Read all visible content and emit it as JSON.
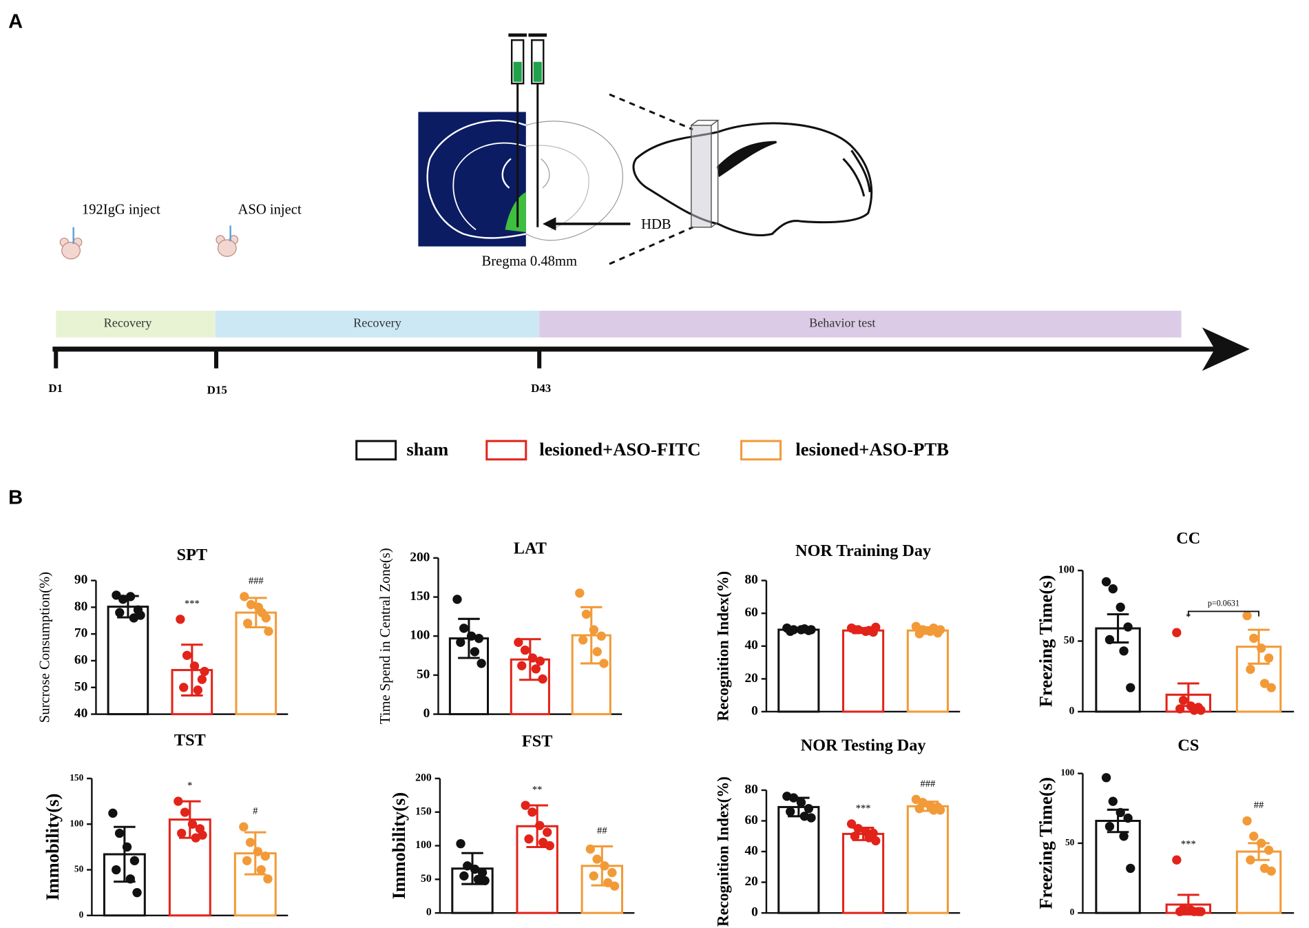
{
  "panel_a": {
    "label": "A",
    "events": [
      "192IgG inject",
      "ASO inject"
    ],
    "section_label": "Bregma 0.48mm",
    "region_label": "HDB",
    "phases": [
      "Recovery",
      "Recovery",
      "Behavior test"
    ],
    "days": [
      "D1",
      "D15",
      "D43"
    ]
  },
  "panel_b": {
    "label": "B"
  },
  "legend": [
    {
      "name": "sham",
      "color": "#111111"
    },
    {
      "name": "lesioned+ASO-FITC",
      "color": "#e2231a"
    },
    {
      "name": "lesioned+ASO-PTB",
      "color": "#f29a38"
    }
  ],
  "chart_data": [
    {
      "type": "bar",
      "title": "SPT",
      "y_label": "Surcrose Consumption(%)",
      "ylim": [
        40,
        90
      ],
      "yticks": [
        40,
        50,
        60,
        70,
        80,
        90
      ],
      "values": [
        80.2,
        56.5,
        78
      ],
      "errors": [
        4,
        9.5,
        5.5
      ],
      "points": [
        [
          84.5,
          83,
          84,
          79,
          78,
          76,
          77
        ],
        [
          75.5,
          62,
          58,
          53,
          50,
          49,
          56
        ],
        [
          84,
          81,
          80,
          76,
          74,
          78,
          71
        ]
      ],
      "annotations": [
        null,
        "***",
        "###"
      ]
    },
    {
      "type": "bar",
      "title": "LAT",
      "y_label": "Time Spend in Central Zone(s)",
      "ylim": [
        0,
        200
      ],
      "yticks": [
        0,
        50,
        100,
        150,
        200
      ],
      "values": [
        97,
        70,
        101
      ],
      "errors": [
        25,
        26,
        36
      ],
      "points": [
        [
          147,
          110,
          100,
          97,
          92,
          80,
          65
        ],
        [
          92,
          82,
          72,
          68,
          62,
          58,
          45
        ],
        [
          155,
          128,
          108,
          100,
          95,
          80,
          65
        ]
      ],
      "annotations": [
        null,
        null,
        null
      ]
    },
    {
      "type": "bar",
      "title": "NOR Training Day",
      "y_label": "Recognition Index(%)",
      "ylim": [
        0,
        80
      ],
      "yticks": [
        0,
        20,
        40,
        60,
        80
      ],
      "values": [
        50,
        49.5,
        49.5
      ],
      "errors": [
        1,
        1.5,
        2
      ],
      "points": [
        [
          51,
          50,
          50,
          49.5,
          49,
          50.5,
          50
        ],
        [
          51,
          50,
          49,
          48.5,
          50,
          49.5,
          51.5
        ],
        [
          52,
          50,
          49,
          48,
          47.5,
          51,
          50
        ]
      ],
      "annotations": [
        null,
        null,
        null
      ]
    },
    {
      "type": "bar",
      "title": "CC",
      "y_label": "Freezing Time(s)",
      "ylim": [
        0,
        100
      ],
      "yticks": [
        0,
        50,
        100
      ],
      "values": [
        59,
        12,
        46
      ],
      "errors": [
        10,
        8,
        12
      ],
      "points": [
        [
          92,
          87,
          74,
          60,
          51,
          43,
          17
        ],
        [
          56,
          8,
          4,
          3,
          2,
          1,
          1
        ],
        [
          68,
          52,
          45,
          38,
          30,
          20,
          17
        ]
      ],
      "annotations": [
        null,
        "*",
        null
      ],
      "bracket_label": "p=0.0631"
    },
    {
      "type": "bar",
      "title": "TST",
      "y_label": "Immobility(s)",
      "ylim": [
        0,
        150
      ],
      "yticks": [
        0,
        50,
        100,
        150
      ],
      "values": [
        67,
        105,
        68
      ],
      "errors": [
        30,
        20,
        23
      ],
      "points": [
        [
          112,
          90,
          75,
          60,
          50,
          40,
          25
        ],
        [
          125,
          113,
          100,
          95,
          90,
          85,
          88
        ],
        [
          97,
          80,
          70,
          65,
          60,
          50,
          40
        ]
      ],
      "annotations": [
        null,
        "*",
        "#"
      ]
    },
    {
      "type": "bar",
      "title": "FST",
      "y_label": "Immobility(s)",
      "ylim": [
        0,
        200
      ],
      "yticks": [
        0,
        50,
        100,
        150,
        200
      ],
      "values": [
        66,
        129,
        70
      ],
      "errors": [
        23,
        31,
        29
      ],
      "points": [
        [
          103,
          70,
          65,
          60,
          55,
          50,
          48
        ],
        [
          160,
          150,
          130,
          120,
          110,
          105,
          100
        ],
        [
          95,
          80,
          70,
          60,
          55,
          45,
          40
        ]
      ],
      "annotations": [
        null,
        "**",
        "##"
      ]
    },
    {
      "type": "bar",
      "title": "NOR Testing Day",
      "y_label": "Recognition Index(%)",
      "ylim": [
        0,
        80
      ],
      "yticks": [
        0,
        20,
        40,
        60,
        80
      ],
      "values": [
        69,
        51.5,
        69.5
      ],
      "errors": [
        6,
        4,
        3
      ],
      "points": [
        [
          76,
          75,
          72,
          68,
          66,
          63,
          62
        ],
        [
          58,
          55,
          53,
          52,
          50,
          49,
          47
        ],
        [
          74,
          72,
          70,
          69,
          68,
          67,
          67
        ]
      ],
      "annotations": [
        null,
        "***",
        "###"
      ]
    },
    {
      "type": "bar",
      "title": "CS",
      "y_label": "Freezing Time(s)",
      "ylim": [
        0,
        100
      ],
      "yticks": [
        0,
        50,
        100
      ],
      "values": [
        66,
        6,
        44
      ],
      "errors": [
        8,
        7,
        6
      ],
      "points": [
        [
          97,
          80,
          72,
          68,
          62,
          55,
          32
        ],
        [
          38,
          3,
          2,
          1,
          1,
          1,
          1
        ],
        [
          66,
          55,
          50,
          45,
          38,
          32,
          30
        ]
      ],
      "annotations": [
        null,
        "***",
        "##"
      ]
    }
  ]
}
